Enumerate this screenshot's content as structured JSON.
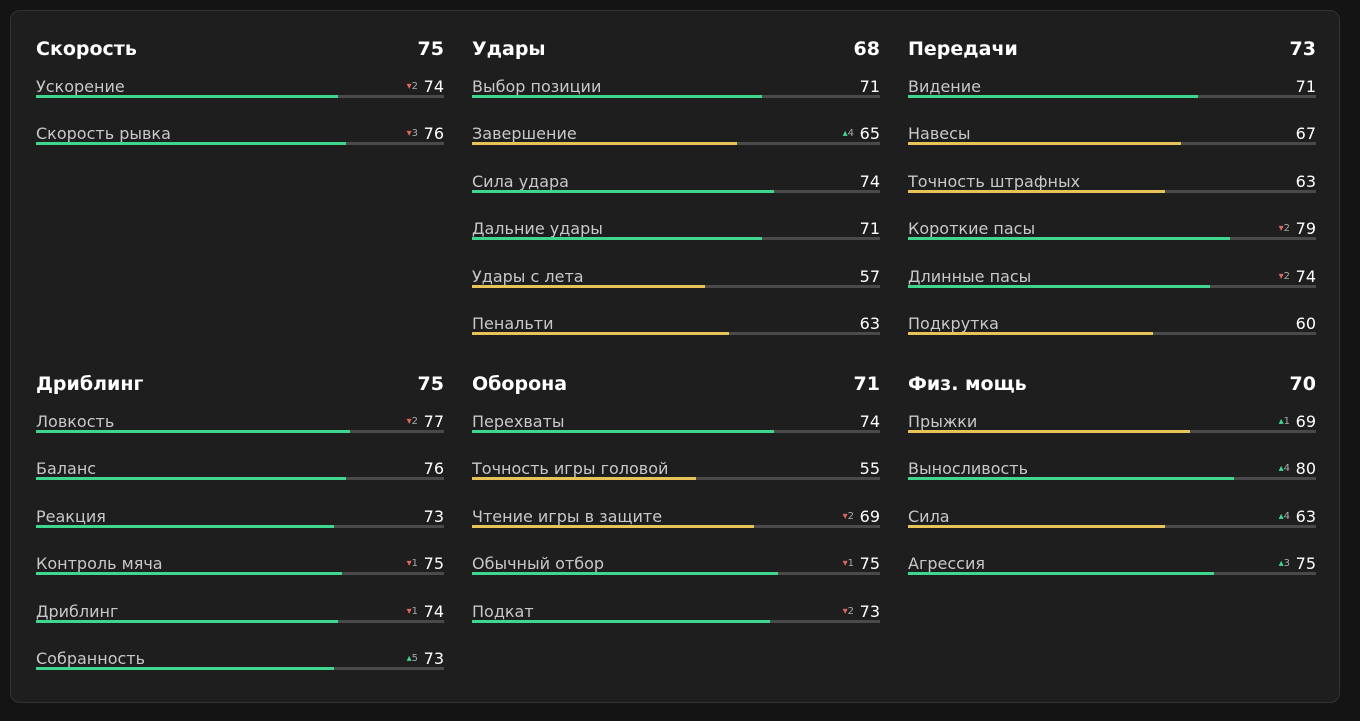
{
  "groups": [
    {
      "title": "Скорость",
      "total": 75,
      "stats": [
        {
          "name": "Ускорение",
          "value": 74,
          "color": "#3fd68e",
          "change": {
            "dir": "down",
            "value": 2
          }
        },
        {
          "name": "Скорость рывка",
          "value": 76,
          "color": "#3fd68e",
          "change": {
            "dir": "down",
            "value": 3
          }
        }
      ]
    },
    {
      "title": "Удары",
      "total": 68,
      "stats": [
        {
          "name": "Выбор позиции",
          "value": 71,
          "color": "#3fd68e"
        },
        {
          "name": "Завершение",
          "value": 65,
          "color": "#e8c35a",
          "change": {
            "dir": "up",
            "value": 4
          }
        },
        {
          "name": "Сила удара",
          "value": 74,
          "color": "#3fd68e"
        },
        {
          "name": "Дальние удары",
          "value": 71,
          "color": "#3fd68e"
        },
        {
          "name": "Удары с лета",
          "value": 57,
          "color": "#e8c35a"
        },
        {
          "name": "Пенальти",
          "value": 63,
          "color": "#e8c35a"
        }
      ]
    },
    {
      "title": "Передачи",
      "total": 73,
      "stats": [
        {
          "name": "Видение",
          "value": 71,
          "color": "#3fd68e"
        },
        {
          "name": "Навесы",
          "value": 67,
          "color": "#e8c35a"
        },
        {
          "name": "Точность штрафных",
          "value": 63,
          "color": "#e8c35a"
        },
        {
          "name": "Короткие пасы",
          "value": 79,
          "color": "#3fd68e",
          "change": {
            "dir": "down",
            "value": 2
          }
        },
        {
          "name": "Длинные пасы",
          "value": 74,
          "color": "#3fd68e",
          "change": {
            "dir": "down",
            "value": 2
          }
        },
        {
          "name": "Подкрутка",
          "value": 60,
          "color": "#e8c35a"
        }
      ]
    },
    {
      "title": "Дриблинг",
      "total": 75,
      "stats": [
        {
          "name": "Ловкость",
          "value": 77,
          "color": "#3fd68e",
          "change": {
            "dir": "down",
            "value": 2
          }
        },
        {
          "name": "Баланс",
          "value": 76,
          "color": "#3fd68e"
        },
        {
          "name": "Реакция",
          "value": 73,
          "color": "#3fd68e"
        },
        {
          "name": "Контроль мяча",
          "value": 75,
          "color": "#3fd68e",
          "change": {
            "dir": "down",
            "value": 1
          }
        },
        {
          "name": "Дриблинг",
          "value": 74,
          "color": "#3fd68e",
          "change": {
            "dir": "down",
            "value": 1
          }
        },
        {
          "name": "Собранность",
          "value": 73,
          "color": "#3fd68e",
          "change": {
            "dir": "up",
            "value": 5
          }
        }
      ]
    },
    {
      "title": "Оборона",
      "total": 71,
      "stats": [
        {
          "name": "Перехваты",
          "value": 74,
          "color": "#3fd68e"
        },
        {
          "name": "Точность игры головой",
          "value": 55,
          "color": "#e8c35a"
        },
        {
          "name": "Чтение игры в защите",
          "value": 69,
          "color": "#e8c35a",
          "change": {
            "dir": "down",
            "value": 2
          }
        },
        {
          "name": "Обычный отбор",
          "value": 75,
          "color": "#3fd68e",
          "change": {
            "dir": "down",
            "value": 1
          }
        },
        {
          "name": "Подкат",
          "value": 73,
          "color": "#3fd68e",
          "change": {
            "dir": "down",
            "value": 2
          }
        }
      ]
    },
    {
      "title": "Физ. мощь",
      "total": 70,
      "stats": [
        {
          "name": "Прыжки",
          "value": 69,
          "color": "#e8c35a",
          "change": {
            "dir": "up",
            "value": 1
          }
        },
        {
          "name": "Выносливость",
          "value": 80,
          "color": "#3fd68e",
          "change": {
            "dir": "up",
            "value": 4
          }
        },
        {
          "name": "Сила",
          "value": 63,
          "color": "#e8c35a",
          "change": {
            "dir": "up",
            "value": 4
          }
        },
        {
          "name": "Агрессия",
          "value": 75,
          "color": "#3fd68e",
          "change": {
            "dir": "up",
            "value": 3
          }
        }
      ]
    }
  ]
}
